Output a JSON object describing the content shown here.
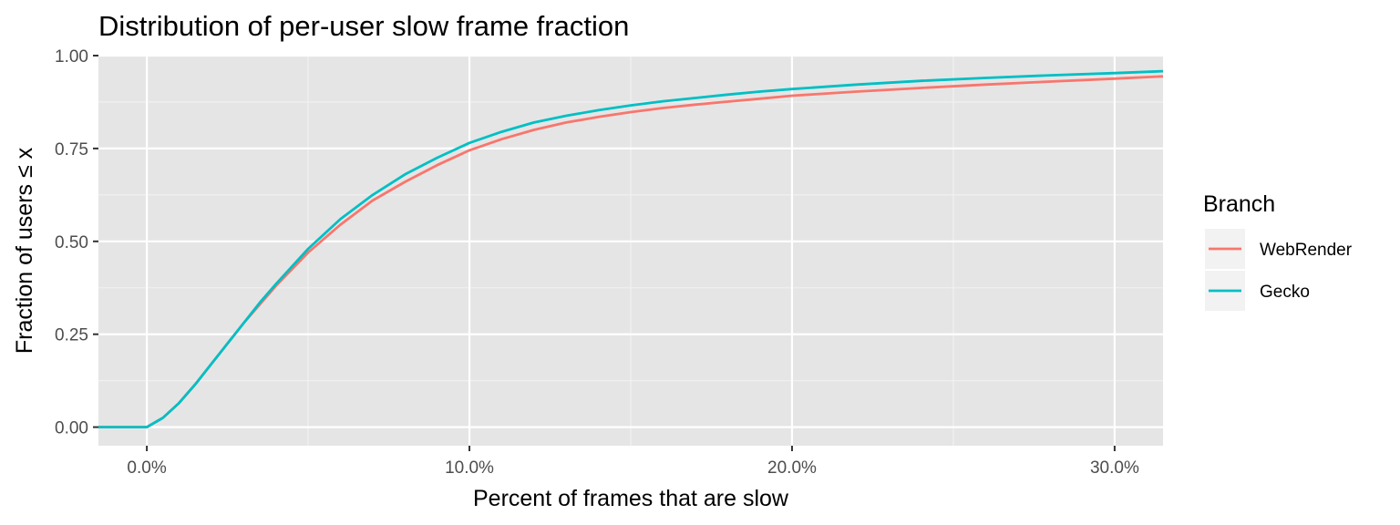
{
  "chart_data": {
    "type": "line",
    "title": "Distribution of per-user slow frame fraction",
    "xlabel": "Percent of frames that are slow",
    "ylabel": "Fraction of users ≤ x",
    "xlim": [
      -1.5,
      31.5
    ],
    "ylim": [
      -0.05,
      1.0
    ],
    "x_ticks": [
      0,
      10,
      20,
      30
    ],
    "x_tick_labels": [
      "0.0%",
      "10.0%",
      "20.0%",
      "30.0%"
    ],
    "y_ticks": [
      0,
      0.25,
      0.5,
      0.75,
      1.0
    ],
    "y_tick_labels": [
      "0.00",
      "0.25",
      "0.50",
      "0.75",
      "1.00"
    ],
    "grid": true,
    "legend": {
      "title": "Branch",
      "position": "right"
    },
    "series": [
      {
        "name": "WebRender",
        "color": "#f8766d",
        "x": [
          -1.5,
          0,
          0.5,
          1,
          1.5,
          2,
          2.5,
          3,
          3.5,
          4,
          5,
          6,
          7,
          8,
          9,
          10,
          11,
          12,
          13,
          14,
          15,
          16,
          17,
          18,
          19,
          20,
          22,
          24,
          26,
          28,
          30,
          31.5
        ],
        "y": [
          0,
          0,
          0.025,
          0.065,
          0.115,
          0.17,
          0.225,
          0.28,
          0.33,
          0.38,
          0.47,
          0.545,
          0.61,
          0.66,
          0.705,
          0.745,
          0.775,
          0.8,
          0.82,
          0.835,
          0.848,
          0.859,
          0.868,
          0.876,
          0.884,
          0.892,
          0.903,
          0.913,
          0.922,
          0.93,
          0.938,
          0.944
        ]
      },
      {
        "name": "Gecko",
        "color": "#00bfc4",
        "x": [
          -1.5,
          0,
          0.5,
          1,
          1.5,
          2,
          2.5,
          3,
          3.5,
          4,
          5,
          6,
          7,
          8,
          9,
          10,
          11,
          12,
          13,
          14,
          15,
          16,
          17,
          18,
          19,
          20,
          22,
          24,
          26,
          28,
          30,
          31.5
        ],
        "y": [
          0,
          0,
          0.025,
          0.065,
          0.115,
          0.17,
          0.225,
          0.28,
          0.335,
          0.385,
          0.48,
          0.56,
          0.625,
          0.68,
          0.725,
          0.765,
          0.795,
          0.82,
          0.838,
          0.853,
          0.866,
          0.877,
          0.886,
          0.895,
          0.903,
          0.91,
          0.922,
          0.932,
          0.94,
          0.947,
          0.953,
          0.958
        ]
      }
    ]
  }
}
